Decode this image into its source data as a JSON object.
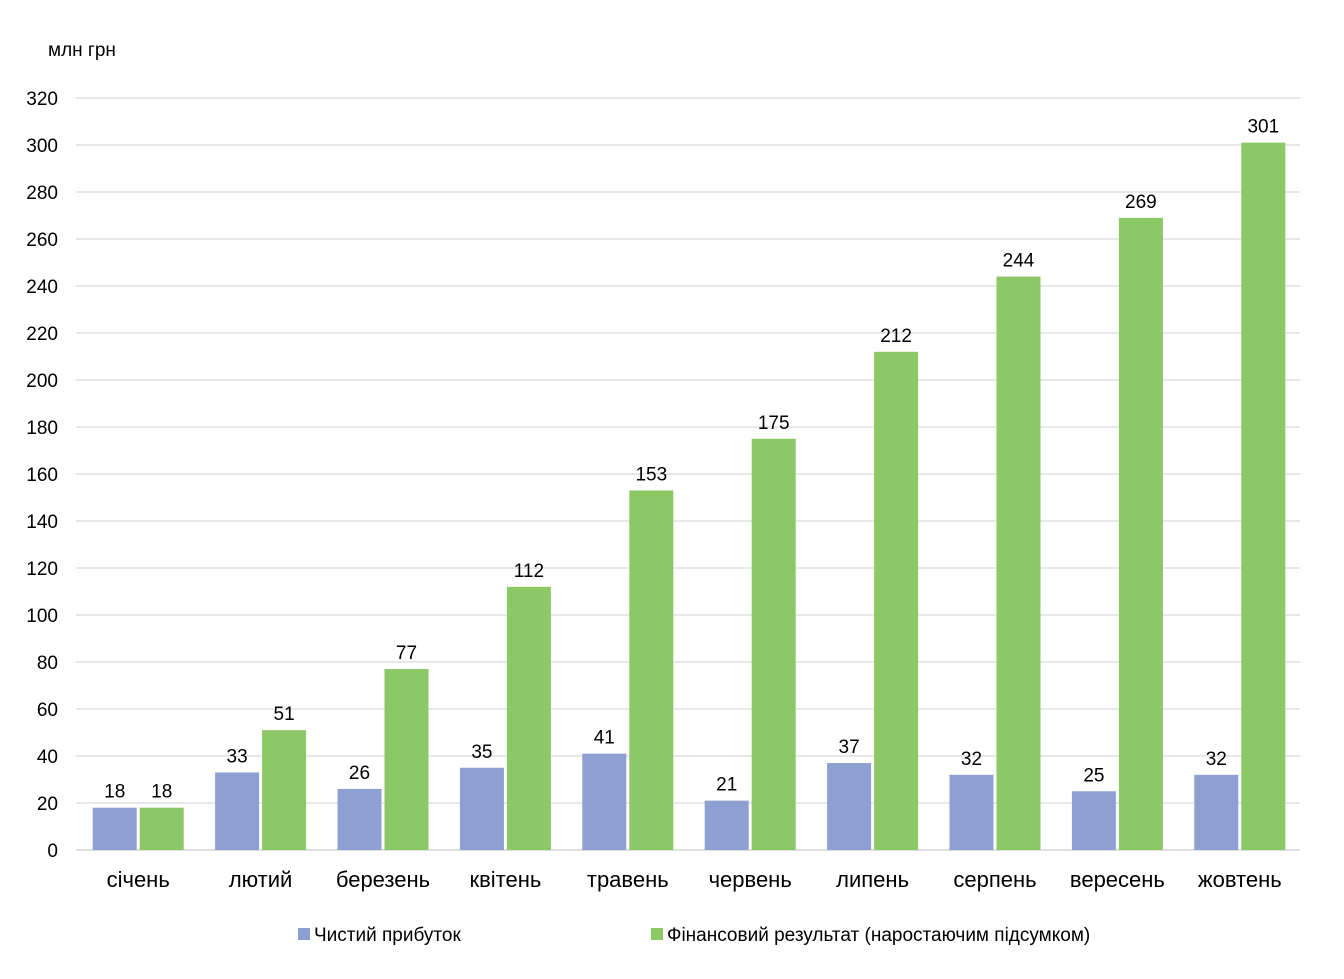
{
  "chart_data": {
    "type": "bar",
    "ylabel": "млн  грн",
    "ylim": [
      0,
      320
    ],
    "yticks": [
      0,
      20,
      40,
      60,
      80,
      100,
      120,
      140,
      160,
      180,
      200,
      220,
      240,
      260,
      280,
      300,
      320
    ],
    "grid": true,
    "legend_position": "bottom",
    "categories": [
      "січень",
      "лютий",
      "березень",
      "квітень",
      "травень",
      "червень",
      "липень",
      "серпень",
      "вересень",
      "жовтень"
    ],
    "series": [
      {
        "name": "Чистий прибуток",
        "color": "#8e9fd1",
        "values": [
          18,
          33,
          26,
          35,
          41,
          21,
          37,
          32,
          25,
          32
        ]
      },
      {
        "name": "Фінансовий результат (наростаючим підсумком)",
        "color": "#8cc866",
        "values": [
          18,
          51,
          77,
          112,
          153,
          175,
          212,
          244,
          269,
          301
        ]
      }
    ]
  }
}
